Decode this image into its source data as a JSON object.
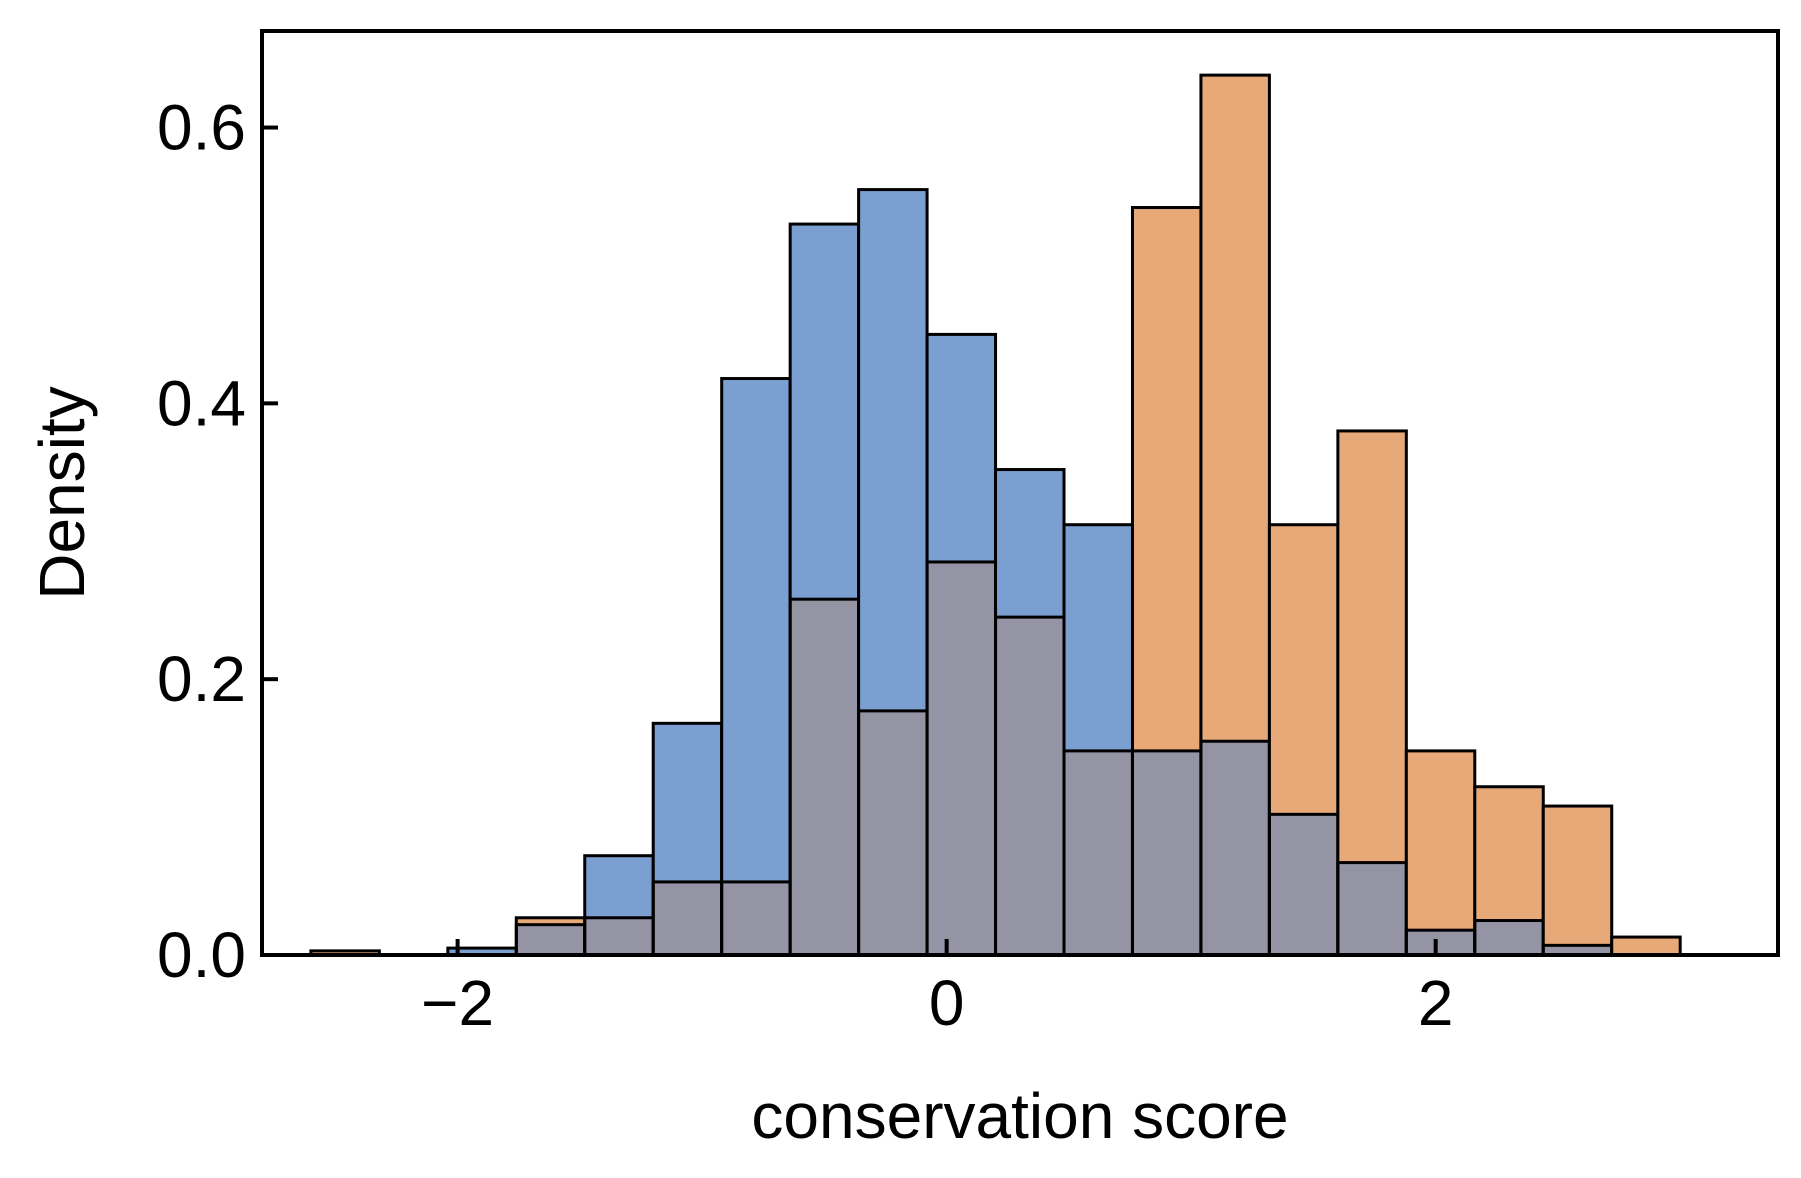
{
  "chart_data": {
    "type": "bar",
    "subtype": "overlapping-histogram",
    "title": "",
    "xlabel": "conservation score",
    "ylabel": "Density",
    "xlim": [
      -2.8,
      3.4
    ],
    "ylim": [
      0,
      0.67
    ],
    "xticks": [
      -2,
      0,
      2
    ],
    "xtick_labels": [
      "−2",
      "0",
      "2"
    ],
    "yticks": [
      0.0,
      0.2,
      0.4,
      0.6
    ],
    "ytick_labels": [
      "0.0",
      "0.2",
      "0.4",
      "0.6"
    ],
    "grid": false,
    "legend": "none",
    "bin_edges": [
      -2.6,
      -2.32,
      -2.04,
      -1.76,
      -1.48,
      -1.2,
      -0.92,
      -0.64,
      -0.36,
      -0.08,
      0.2,
      0.48,
      0.76,
      1.04,
      1.32,
      1.6,
      1.88,
      2.16,
      2.44,
      2.72,
      3.0
    ],
    "series": [
      {
        "color": "#7b9fd0",
        "values": [
          0.0,
          0.0,
          0.005,
          0.022,
          0.072,
          0.168,
          0.418,
          0.53,
          0.555,
          0.45,
          0.352,
          0.312,
          0.148,
          0.155,
          0.102,
          0.067,
          0.018,
          0.025,
          0.007,
          0.0
        ]
      },
      {
        "color": "#e8a978",
        "values": [
          0.003,
          0.0,
          0.0,
          0.027,
          0.027,
          0.053,
          0.053,
          0.258,
          0.177,
          0.285,
          0.245,
          0.148,
          0.542,
          0.638,
          0.312,
          0.38,
          0.148,
          0.122,
          0.108,
          0.013
        ]
      }
    ],
    "overlap_color": "#9594a5"
  }
}
